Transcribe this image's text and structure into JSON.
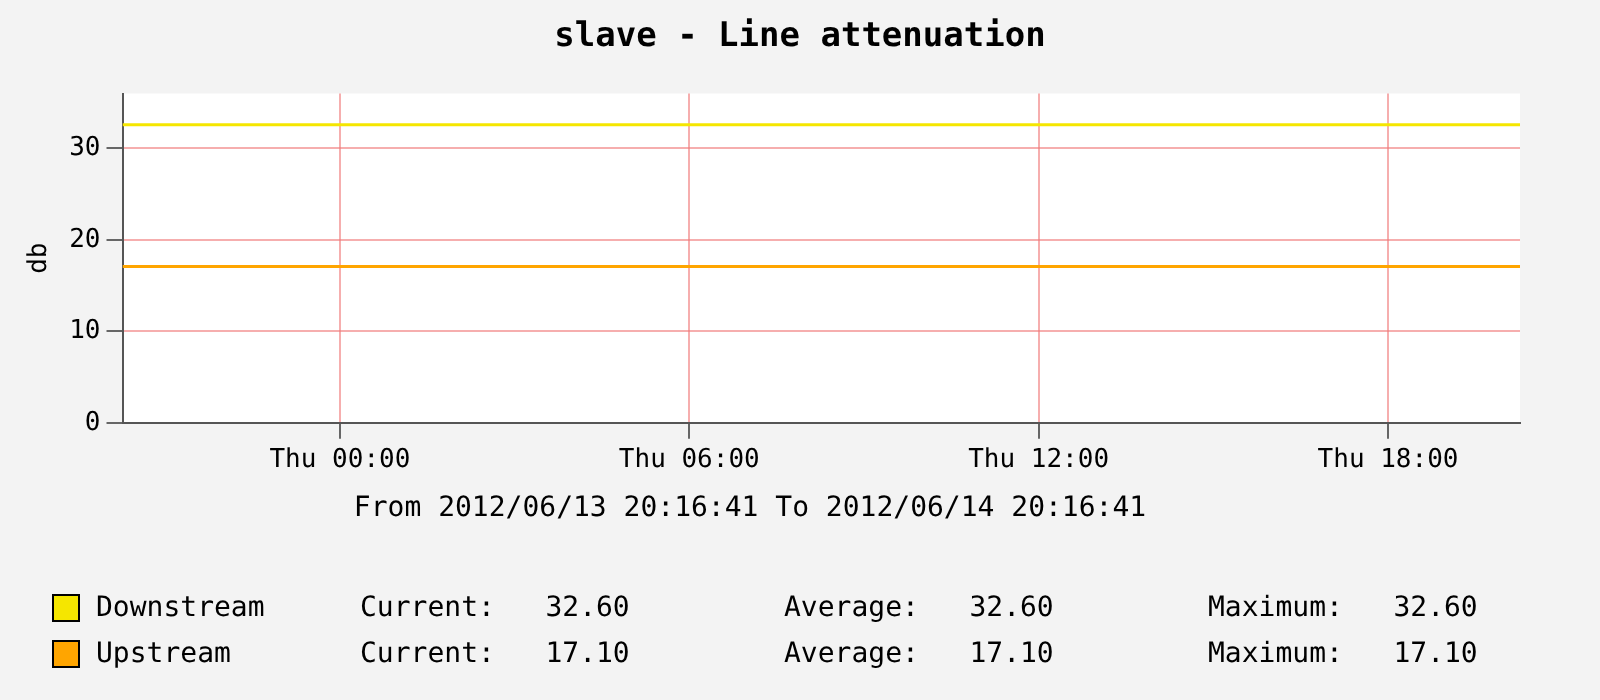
{
  "chart_data": {
    "type": "line",
    "title": "slave - Line attenuation",
    "ylabel": "db",
    "x": [
      "2012-06-13T20:16",
      "2012-06-14T20:16"
    ],
    "series": [
      {
        "name": "Downstream",
        "color": "#f5e600",
        "values": [
          32.6,
          32.6
        ]
      },
      {
        "name": "Upstream",
        "color": "#ffa500",
        "values": [
          17.1,
          17.1
        ]
      }
    ],
    "xlim": [
      "2012-06-13T20:16",
      "2012-06-14T20:16"
    ],
    "xticks": [
      {
        "value": "2012-06-14T00:00",
        "label": "Thu 00:00"
      },
      {
        "value": "2012-06-14T06:00",
        "label": "Thu 06:00"
      },
      {
        "value": "2012-06-14T12:00",
        "label": "Thu 12:00"
      },
      {
        "value": "2012-06-14T18:00",
        "label": "Thu 18:00"
      }
    ],
    "ylim": [
      0,
      36
    ],
    "yticks": [
      0,
      10,
      20,
      30
    ],
    "grid": true,
    "legend": "bottom",
    "marker": "none",
    "line_style": "solid",
    "annotations": [
      "From 2012/06/13 20:16:41 To 2012/06/14 20:16:41",
      "Current:   32.60",
      "Average:   32.60",
      "Maximum:   32.60",
      "Current:   17.10",
      "Average:   17.10",
      "Maximum:   17.10"
    ]
  }
}
